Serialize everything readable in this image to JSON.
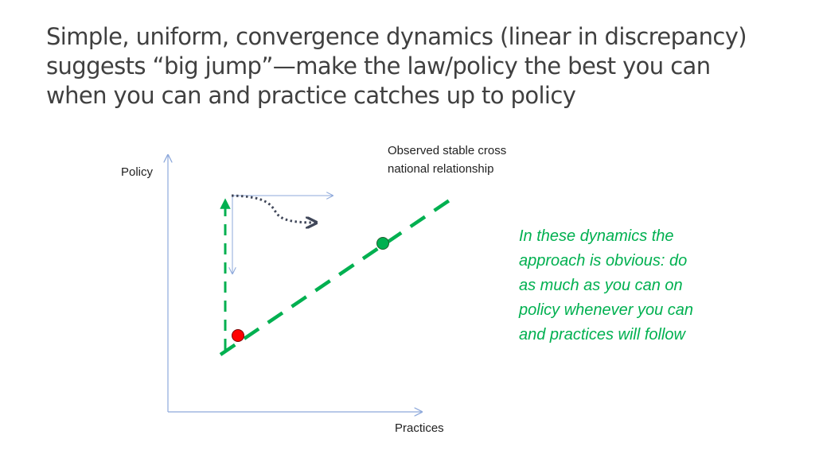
{
  "slide": {
    "title_lines": [
      "Simple, uniform, convergence dynamics (linear in discrepancy)",
      "suggests “big jump”—make the law/policy the best you can",
      "when you can and practice catches up to policy"
    ]
  },
  "diagram": {
    "y_axis_label": "Policy",
    "x_axis_label": "Practices",
    "relationship_label_lines": [
      "Observed stable cross",
      "national relationship"
    ],
    "note_lines": [
      "In these dynamics the",
      "approach is obvious:  do",
      "as much as you can on",
      "policy whenever you can",
      "and practices will follow"
    ],
    "colors": {
      "relationship_line": "#00B050",
      "start_point": "#FF0000",
      "target_point": "#00B050",
      "axis": "#8EA9DB",
      "dynamic_arrow": "#404759",
      "note_text": "#00B050"
    }
  }
}
